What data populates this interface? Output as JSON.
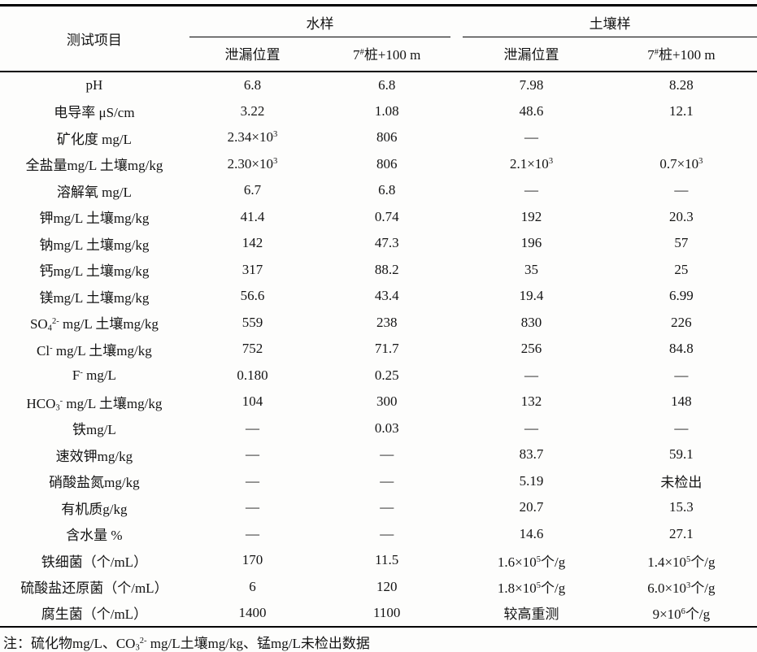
{
  "colors": {
    "background": "#fdfdfc",
    "text": "#141414",
    "rule_line": "#000000"
  },
  "table": {
    "corner_header": "测试项目",
    "groups": [
      {
        "label": "水样",
        "columns": [
          "泄漏位置",
          "7^{#}桩+100 m"
        ]
      },
      {
        "label": "土壤样",
        "columns": [
          "泄漏位置",
          "7^{#}桩+100 m"
        ]
      }
    ],
    "rows": [
      {
        "cells": [
          "pH",
          "6.8",
          "6.8",
          "7.98",
          "8.28"
        ]
      },
      {
        "cells": [
          "电导率 μS/cm",
          "3.22",
          "1.08",
          "48.6",
          "12.1"
        ]
      },
      {
        "cells": [
          "矿化度 mg/L",
          "2.34×10^{3}",
          "806",
          "—",
          ""
        ]
      },
      {
        "cells": [
          "全盐量mg/L 土壤mg/kg",
          "2.30×10^{3}",
          "806",
          "2.1×10^{3}",
          "0.7×10^{3}"
        ]
      },
      {
        "cells": [
          "溶解氧 mg/L",
          "6.7",
          "6.8",
          "—",
          "—"
        ]
      },
      {
        "cells": [
          "钾mg/L 土壤mg/kg",
          "41.4",
          "0.74",
          "192",
          "20.3"
        ]
      },
      {
        "cells": [
          "钠mg/L 土壤mg/kg",
          "142",
          "47.3",
          "196",
          "57"
        ]
      },
      {
        "cells": [
          "钙mg/L 土壤mg/kg",
          "317",
          "88.2",
          "35",
          "25"
        ]
      },
      {
        "cells": [
          "镁mg/L 土壤mg/kg",
          "56.6",
          "43.4",
          "19.4",
          "6.99"
        ]
      },
      {
        "cells": [
          "SO_{4}^{2-} mg/L 土壤mg/kg",
          "559",
          "238",
          "830",
          "226"
        ]
      },
      {
        "cells": [
          "Cl^{-} mg/L 土壤mg/kg",
          "752",
          "71.7",
          "256",
          "84.8"
        ]
      },
      {
        "cells": [
          "F^{-} mg/L",
          "0.180",
          "0.25",
          "—",
          "—"
        ]
      },
      {
        "cells": [
          "HCO_{3}^{-} mg/L 土壤mg/kg",
          "104",
          "300",
          "132",
          "148"
        ]
      },
      {
        "cells": [
          "铁mg/L",
          "—",
          "0.03",
          "—",
          "—"
        ]
      },
      {
        "cells": [
          "速效钾mg/kg",
          "—",
          "—",
          "83.7",
          "59.1"
        ]
      },
      {
        "cells": [
          "硝酸盐氮mg/kg",
          "—",
          "—",
          "5.19",
          "未检出"
        ]
      },
      {
        "cells": [
          "有机质g/kg",
          "—",
          "—",
          "20.7",
          "15.3"
        ]
      },
      {
        "cells": [
          "含水量 %",
          "—",
          "—",
          "14.6",
          "27.1"
        ]
      },
      {
        "cells": [
          "铁细菌（个/mL）",
          "170",
          "11.5",
          "1.6×10^{5}个/g",
          "1.4×10^{5}个/g"
        ]
      },
      {
        "cells": [
          "硫酸盐还原菌（个/mL）",
          "6",
          "120",
          "1.8×10^{5}个/g",
          "6.0×10^{3}个/g"
        ]
      },
      {
        "cells": [
          "腐生菌（个/mL）",
          "1400",
          "1100",
          "较高重测",
          "9×10^{6}个/g"
        ]
      }
    ],
    "note": "注：硫化物mg/L、CO_{3}^{2-} mg/L土壤mg/kg、锰mg/L未检出数据"
  }
}
